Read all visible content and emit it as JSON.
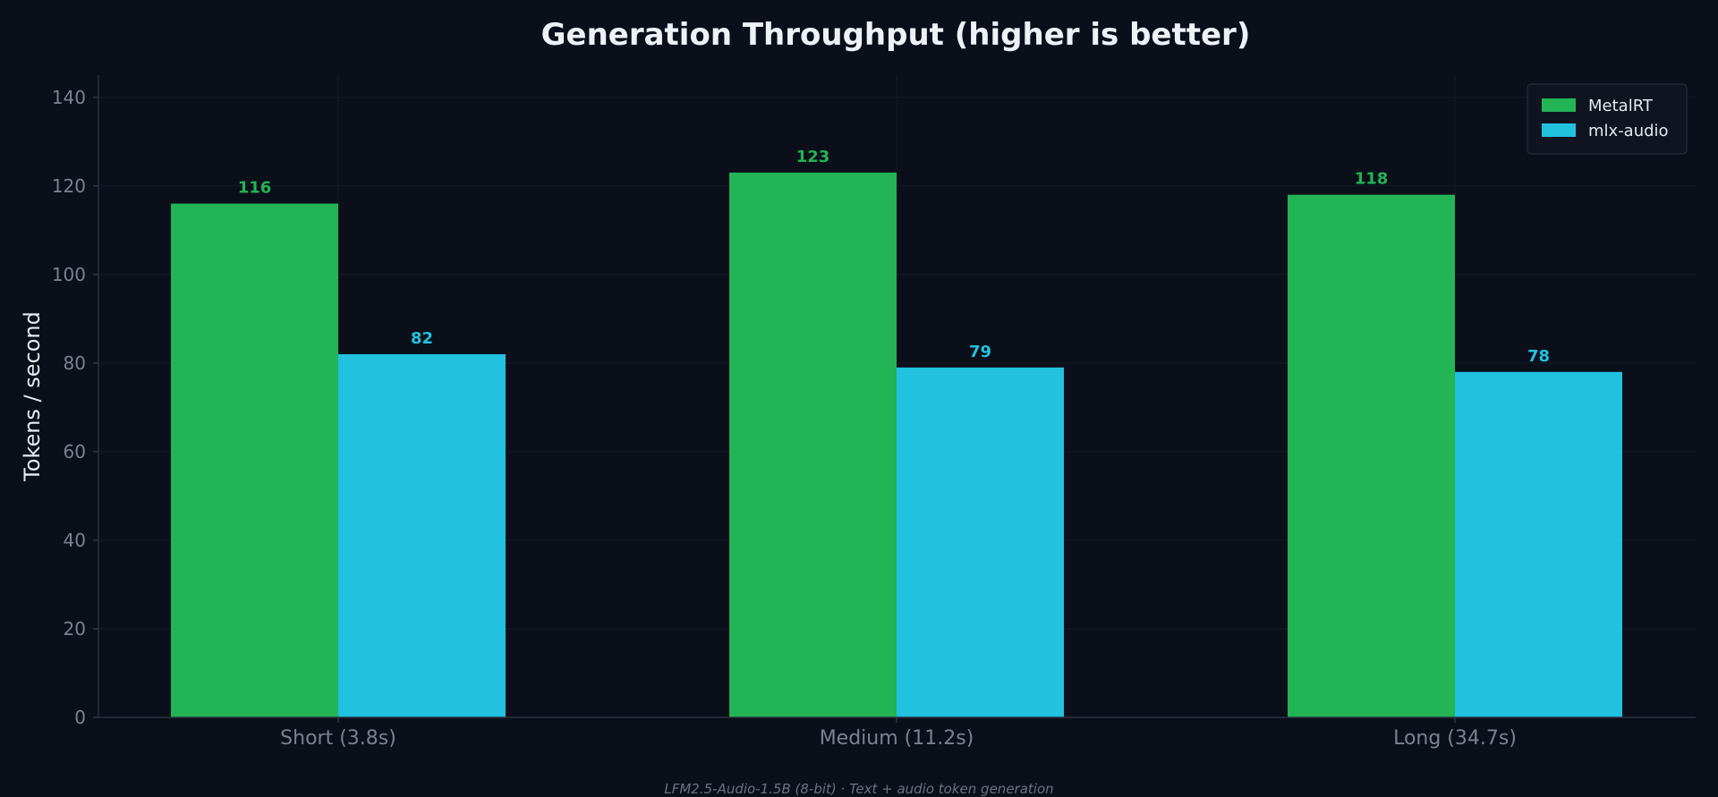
{
  "chart_data": {
    "type": "bar",
    "title": "Generation Throughput (higher is better)",
    "xlabel": "",
    "ylabel": "Tokens / second",
    "caption": "LFM2.5-Audio-1.5B (8-bit) · Text + audio token generation",
    "categories": [
      "Short (3.8s)",
      "Medium (11.2s)",
      "Long (34.7s)"
    ],
    "series": [
      {
        "name": "MetalRT",
        "values": [
          116,
          123,
          118
        ],
        "labels": [
          "116",
          "123",
          "118"
        ],
        "color": "#22b455"
      },
      {
        "name": "mlx-audio",
        "values": [
          82,
          79,
          78
        ],
        "labels": [
          "82",
          "79",
          "78"
        ],
        "color": "#22c1df"
      }
    ],
    "ylim": [
      0,
      145
    ],
    "yticks": [
      0,
      20,
      40,
      60,
      80,
      100,
      120,
      140
    ],
    "grid": true,
    "legend": "top-right"
  }
}
